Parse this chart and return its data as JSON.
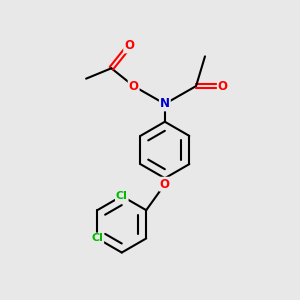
{
  "background_color": "#e8e8e8",
  "bond_color": "#000000",
  "bond_width": 1.5,
  "atom_colors": {
    "O": "#ff0000",
    "N": "#0000cc",
    "Cl": "#00bb00",
    "C": "#000000"
  },
  "figsize": [
    3.0,
    3.0
  ],
  "dpi": 100
}
